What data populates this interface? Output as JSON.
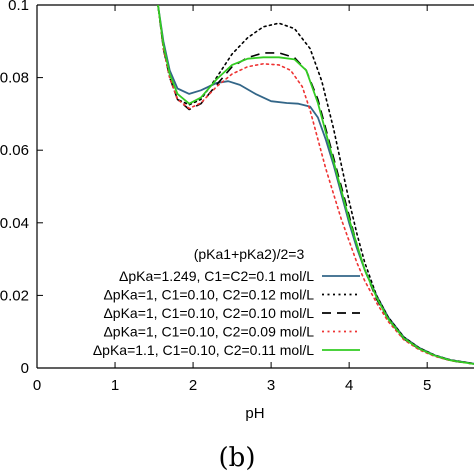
{
  "chart_data": {
    "type": "line",
    "xlabel": "pH",
    "ylabel": "",
    "xlim": [
      0,
      5.6
    ],
    "ylim": [
      0,
      0.1
    ],
    "x_ticks": [
      0,
      1,
      2,
      3,
      4,
      5
    ],
    "y_ticks": [
      0,
      0.02,
      0.04,
      0.06,
      0.08,
      0.1
    ],
    "x_tick_labels": [
      "0",
      "1",
      "2",
      "3",
      "4",
      "5"
    ],
    "y_tick_labels": [
      "0",
      "0.02",
      "0.04",
      "0.06",
      "0.08",
      "0.1"
    ],
    "grid": false,
    "legend_header": "(pKa1+pKa2)/2=3",
    "legend_position": "lower-right",
    "panel_label": "(b)",
    "series": [
      {
        "name": "ΔpKa=1.249, C1=C2=0.1 mol/L",
        "color": "#336688",
        "style": "solid",
        "points": [
          [
            1.55,
            0.1
          ],
          [
            1.62,
            0.09
          ],
          [
            1.7,
            0.082
          ],
          [
            1.8,
            0.077
          ],
          [
            1.95,
            0.0755
          ],
          [
            2.1,
            0.0765
          ],
          [
            2.3,
            0.0785
          ],
          [
            2.45,
            0.079
          ],
          [
            2.6,
            0.078
          ],
          [
            2.8,
            0.0755
          ],
          [
            3.0,
            0.0735
          ],
          [
            3.2,
            0.073
          ],
          [
            3.35,
            0.0728
          ],
          [
            3.5,
            0.072
          ],
          [
            3.6,
            0.069
          ],
          [
            3.7,
            0.063
          ],
          [
            3.8,
            0.056
          ],
          [
            3.9,
            0.048
          ],
          [
            4.0,
            0.04
          ],
          [
            4.1,
            0.033
          ],
          [
            4.2,
            0.027
          ],
          [
            4.35,
            0.02
          ],
          [
            4.5,
            0.014
          ],
          [
            4.7,
            0.0085
          ],
          [
            4.9,
            0.0055
          ],
          [
            5.1,
            0.0035
          ],
          [
            5.3,
            0.0022
          ],
          [
            5.6,
            0.0012
          ]
        ]
      },
      {
        "name": "ΔpKa=1, C1=0.10, C2=0.12 mol/L",
        "color": "#000000",
        "style": "dotted",
        "points": [
          [
            1.55,
            0.1
          ],
          [
            1.62,
            0.088
          ],
          [
            1.7,
            0.08
          ],
          [
            1.8,
            0.074
          ],
          [
            1.95,
            0.0725
          ],
          [
            2.1,
            0.074
          ],
          [
            2.3,
            0.08
          ],
          [
            2.5,
            0.0865
          ],
          [
            2.7,
            0.091
          ],
          [
            2.9,
            0.094
          ],
          [
            3.1,
            0.095
          ],
          [
            3.3,
            0.0935
          ],
          [
            3.5,
            0.088
          ],
          [
            3.65,
            0.079
          ],
          [
            3.8,
            0.066
          ],
          [
            3.9,
            0.056
          ],
          [
            4.0,
            0.046
          ],
          [
            4.1,
            0.037
          ],
          [
            4.2,
            0.029
          ],
          [
            4.35,
            0.02
          ],
          [
            4.5,
            0.014
          ],
          [
            4.7,
            0.0085
          ],
          [
            4.9,
            0.0055
          ],
          [
            5.1,
            0.0035
          ],
          [
            5.3,
            0.0022
          ],
          [
            5.6,
            0.0012
          ]
        ]
      },
      {
        "name": "ΔpKa=1, C1=0.10, C2=0.10 mol/L",
        "color": "#000000",
        "style": "dashed",
        "points": [
          [
            1.55,
            0.1
          ],
          [
            1.62,
            0.088
          ],
          [
            1.7,
            0.08
          ],
          [
            1.8,
            0.074
          ],
          [
            1.95,
            0.0712
          ],
          [
            2.1,
            0.0728
          ],
          [
            2.3,
            0.078
          ],
          [
            2.5,
            0.083
          ],
          [
            2.7,
            0.0855
          ],
          [
            2.9,
            0.0868
          ],
          [
            3.1,
            0.0868
          ],
          [
            3.3,
            0.0855
          ],
          [
            3.45,
            0.082
          ],
          [
            3.6,
            0.074
          ],
          [
            3.7,
            0.066
          ],
          [
            3.8,
            0.058
          ],
          [
            3.9,
            0.05
          ],
          [
            4.0,
            0.042
          ],
          [
            4.1,
            0.034
          ],
          [
            4.2,
            0.027
          ],
          [
            4.35,
            0.019
          ],
          [
            4.5,
            0.0135
          ],
          [
            4.7,
            0.008
          ],
          [
            4.9,
            0.0052
          ],
          [
            5.1,
            0.0033
          ],
          [
            5.3,
            0.002
          ],
          [
            5.6,
            0.0011
          ]
        ]
      },
      {
        "name": "ΔpKa=1, C1=0.10, C2=0.09 mol/L",
        "color": "#ee3333",
        "style": "dotted",
        "points": [
          [
            1.55,
            0.1
          ],
          [
            1.62,
            0.088
          ],
          [
            1.7,
            0.08
          ],
          [
            1.8,
            0.074
          ],
          [
            1.95,
            0.0715
          ],
          [
            2.1,
            0.073
          ],
          [
            2.3,
            0.0775
          ],
          [
            2.5,
            0.081
          ],
          [
            2.7,
            0.083
          ],
          [
            2.9,
            0.0838
          ],
          [
            3.1,
            0.0835
          ],
          [
            3.25,
            0.082
          ],
          [
            3.4,
            0.0775
          ],
          [
            3.5,
            0.071
          ],
          [
            3.6,
            0.063
          ],
          [
            3.7,
            0.055
          ],
          [
            3.8,
            0.048
          ],
          [
            3.9,
            0.041
          ],
          [
            4.0,
            0.035
          ],
          [
            4.1,
            0.029
          ],
          [
            4.2,
            0.024
          ],
          [
            4.35,
            0.018
          ],
          [
            4.5,
            0.0128
          ],
          [
            4.7,
            0.0078
          ],
          [
            4.9,
            0.005
          ],
          [
            5.1,
            0.0032
          ],
          [
            5.3,
            0.002
          ],
          [
            5.6,
            0.0011
          ]
        ]
      },
      {
        "name": "ΔpKa=1.1, C1=0.10, C2=0.11 mol/L",
        "color": "#33cc22",
        "style": "solid",
        "points": [
          [
            1.55,
            0.1
          ],
          [
            1.62,
            0.089
          ],
          [
            1.7,
            0.081
          ],
          [
            1.8,
            0.0755
          ],
          [
            1.95,
            0.0728
          ],
          [
            2.1,
            0.0745
          ],
          [
            2.3,
            0.0795
          ],
          [
            2.5,
            0.0835
          ],
          [
            2.7,
            0.0852
          ],
          [
            2.9,
            0.0856
          ],
          [
            3.1,
            0.0856
          ],
          [
            3.3,
            0.085
          ],
          [
            3.45,
            0.082
          ],
          [
            3.6,
            0.073
          ],
          [
            3.7,
            0.065
          ],
          [
            3.8,
            0.057
          ],
          [
            3.9,
            0.049
          ],
          [
            4.0,
            0.041
          ],
          [
            4.1,
            0.034
          ],
          [
            4.2,
            0.027
          ],
          [
            4.35,
            0.0195
          ],
          [
            4.5,
            0.0135
          ],
          [
            4.7,
            0.0082
          ],
          [
            4.9,
            0.0053
          ],
          [
            5.1,
            0.0034
          ],
          [
            5.3,
            0.0021
          ],
          [
            5.6,
            0.0011
          ]
        ]
      }
    ]
  }
}
